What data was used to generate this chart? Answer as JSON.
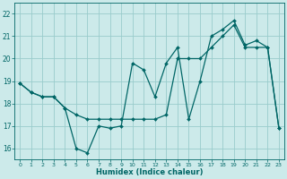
{
  "xlabel": "Humidex (Indice chaleur)",
  "background_color": "#cceaea",
  "line_color": "#006666",
  "grid_color": "#99cccc",
  "xlim": [
    -0.5,
    23.5
  ],
  "ylim": [
    15.5,
    22.5
  ],
  "yticks": [
    16,
    17,
    18,
    19,
    20,
    21,
    22
  ],
  "xticks": [
    0,
    1,
    2,
    3,
    4,
    5,
    6,
    7,
    8,
    9,
    10,
    11,
    12,
    13,
    14,
    15,
    16,
    17,
    18,
    19,
    20,
    21,
    22,
    23
  ],
  "line1_x": [
    0,
    1,
    2,
    3,
    4,
    5,
    6,
    7,
    8,
    9,
    10,
    11,
    12,
    13,
    14,
    15,
    16,
    17,
    18,
    19,
    20,
    21,
    22,
    23
  ],
  "line1_y": [
    18.9,
    18.5,
    18.3,
    18.3,
    17.8,
    16.0,
    15.8,
    17.0,
    16.9,
    17.0,
    19.8,
    19.5,
    18.3,
    19.8,
    20.5,
    17.3,
    19.0,
    21.0,
    21.3,
    21.7,
    20.6,
    20.8,
    20.5,
    16.9
  ],
  "line2_x": [
    0,
    1,
    2,
    3,
    4,
    5,
    6,
    7,
    8,
    9,
    10,
    11,
    12,
    13,
    14,
    15,
    16,
    17,
    18,
    19,
    20,
    21,
    22,
    23
  ],
  "line2_y": [
    18.9,
    18.5,
    18.3,
    18.3,
    17.8,
    17.5,
    17.3,
    17.3,
    17.3,
    17.3,
    17.3,
    17.3,
    17.3,
    17.5,
    20.0,
    20.0,
    20.0,
    20.5,
    21.0,
    21.5,
    20.5,
    20.5,
    20.5,
    16.9
  ]
}
